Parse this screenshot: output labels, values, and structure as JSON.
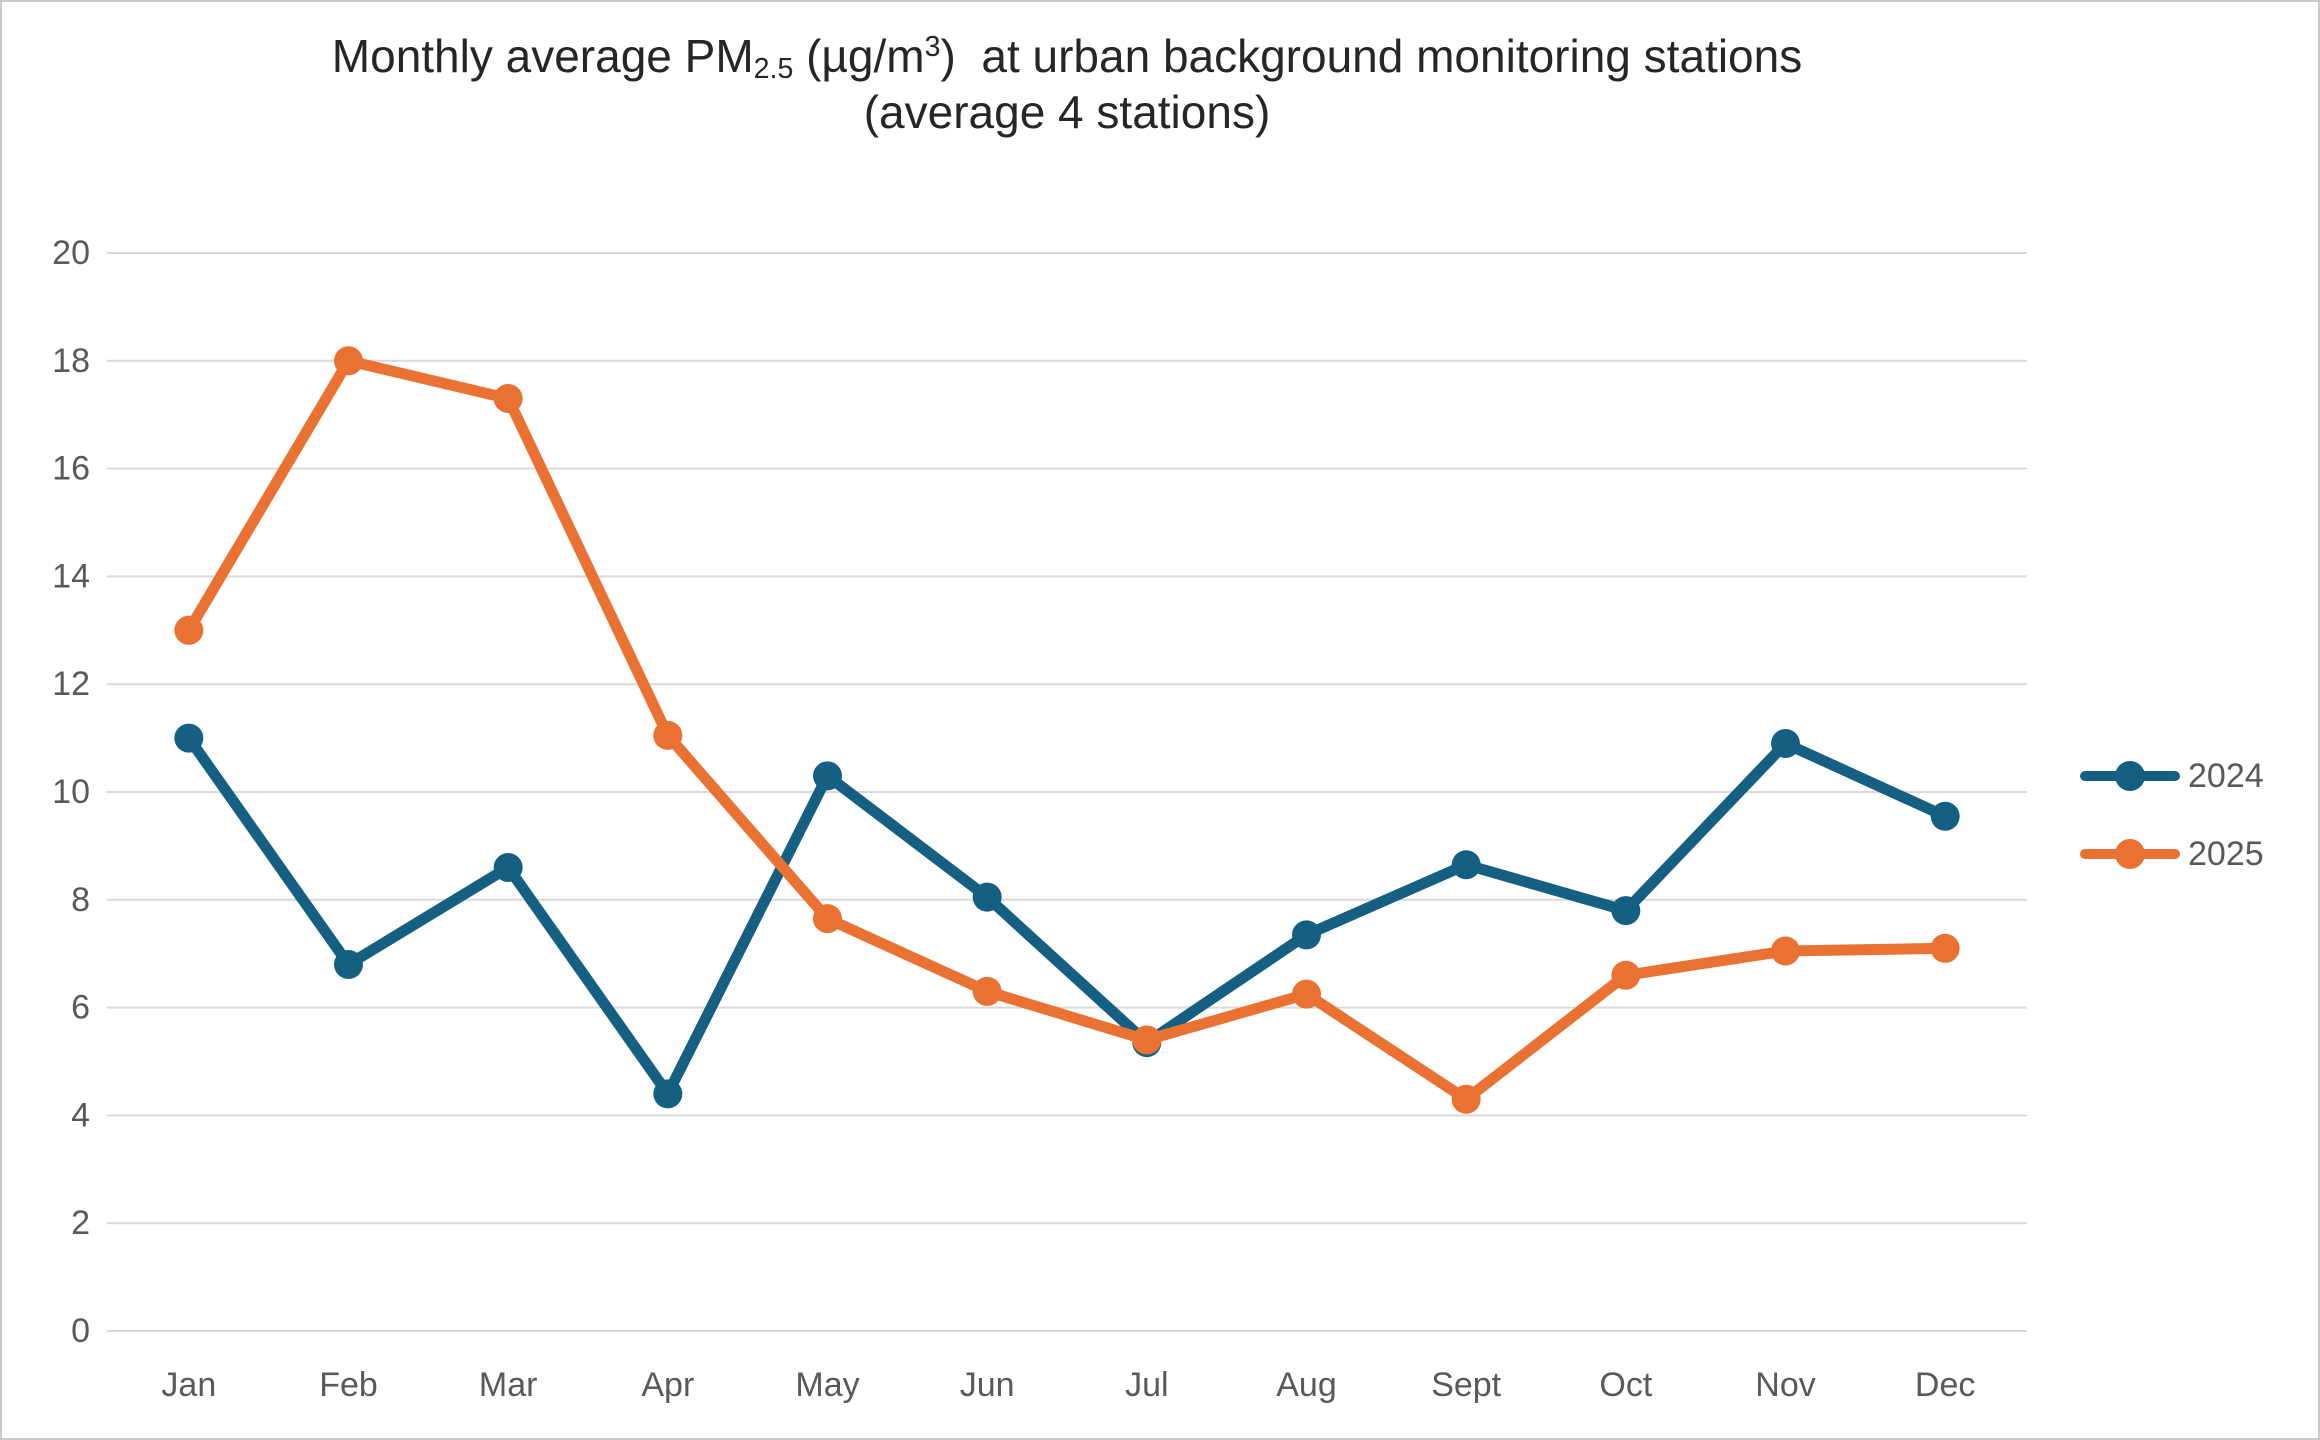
{
  "page": {
    "background": "#FFFFFF",
    "frame_border_color": "#C9C9C9"
  },
  "chart_data": {
    "type": "line",
    "title": "Monthly average PM2.5 (µg/m3) at urban background monitoring stations (average 4 stations)",
    "title_line1_parts": {
      "prefix": "Monthly average PM",
      "subscript": "2.5",
      "mid": " (µg/m",
      "superscript": "3",
      "suffix": ")  at urban background monitoring stations"
    },
    "title_line2": "(average 4 stations)",
    "categories": [
      "Jan",
      "Feb",
      "Mar",
      "Apr",
      "May",
      "Jun",
      "Jul",
      "Aug",
      "Sept",
      "Oct",
      "Nov",
      "Dec"
    ],
    "series": [
      {
        "name": "2024",
        "color": "#156082",
        "values": [
          11.0,
          6.8,
          8.6,
          4.4,
          10.3,
          8.05,
          5.35,
          7.35,
          8.65,
          7.8,
          10.9,
          9.55
        ]
      },
      {
        "name": "2025",
        "color": "#E97132",
        "values": [
          13.0,
          18.0,
          17.3,
          11.05,
          7.65,
          6.3,
          5.4,
          6.25,
          4.3,
          6.6,
          7.05,
          7.1
        ]
      }
    ],
    "xlabel": "",
    "ylabel": "",
    "ylim": [
      0,
      20
    ],
    "yticks": [
      0,
      2,
      4,
      6,
      8,
      10,
      12,
      14,
      16,
      18,
      20
    ],
    "grid": true,
    "gridline_color": "#D9D9D9",
    "axis_label_color": "#595959",
    "marker": "circle",
    "legend": {
      "position": "right",
      "entries": [
        "2024",
        "2025"
      ]
    }
  }
}
